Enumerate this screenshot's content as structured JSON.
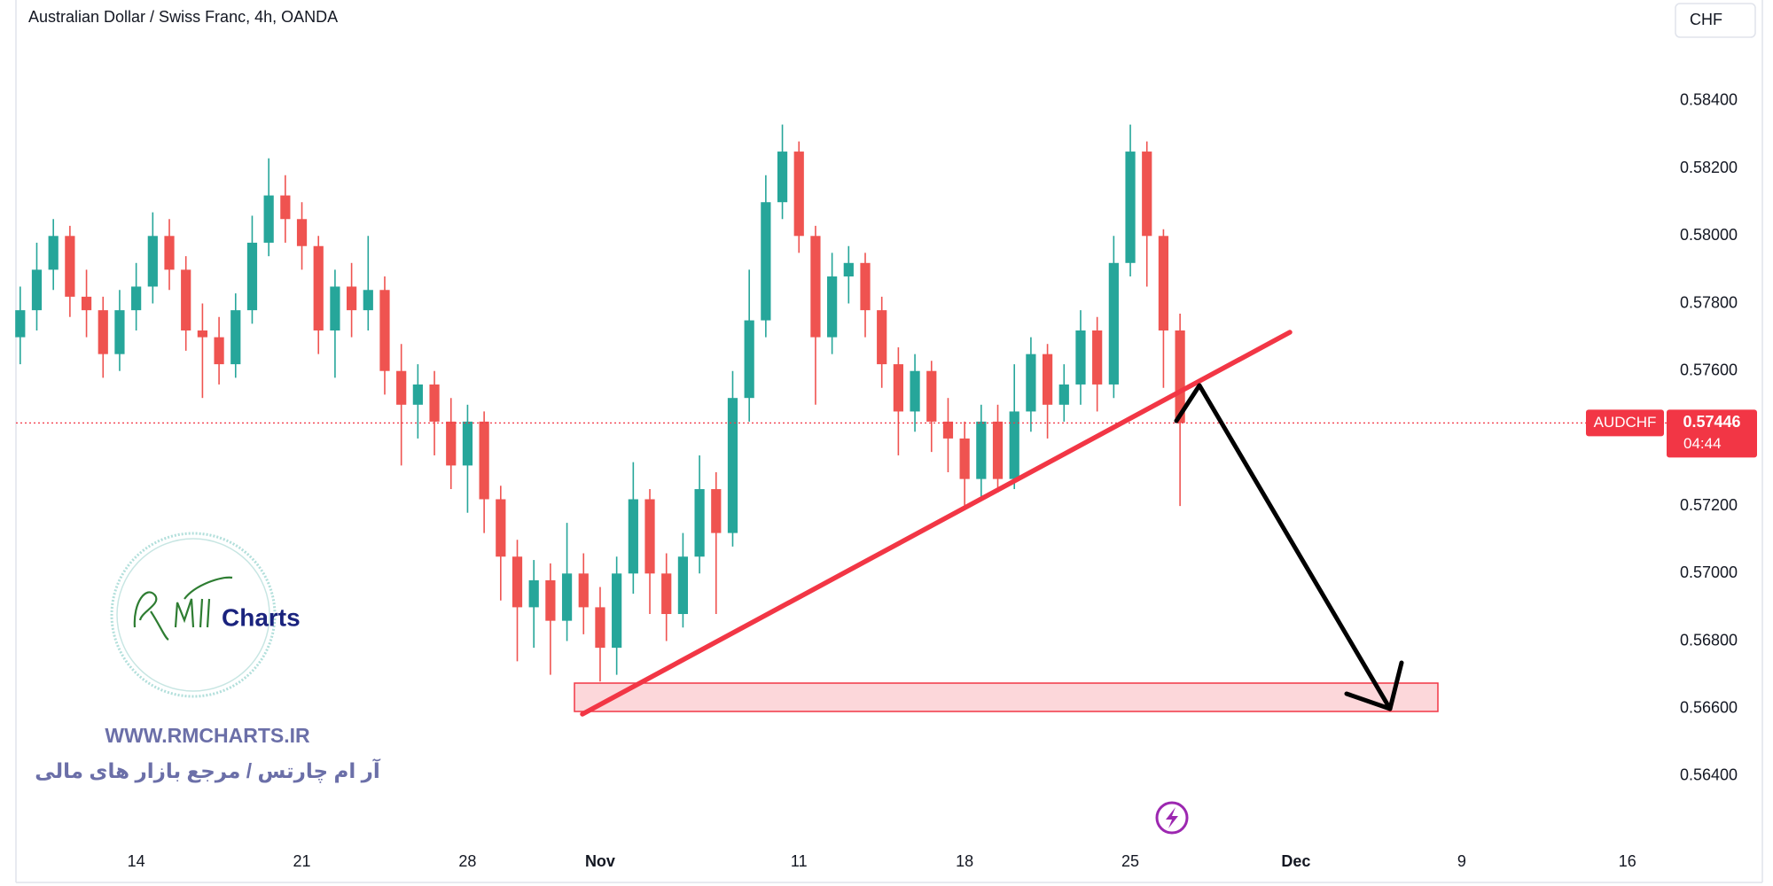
{
  "chart_data": {
    "type": "candlestick",
    "title": "Australian Dollar / Swiss Franc, 4h, OANDA",
    "currency": "CHF",
    "up_color": "#26a69a",
    "down_color": "#ef5350",
    "x": [
      -3.5,
      -3,
      -2.5,
      -2,
      -1.5,
      -1,
      -0.5,
      0,
      0.5,
      1,
      1.5,
      2,
      2.5,
      3,
      3.5,
      4,
      4.5,
      5,
      5.5,
      6,
      6.5,
      7,
      7.5,
      8,
      8.5,
      9,
      9.5,
      10,
      10.5,
      11,
      11.5,
      12,
      12.5,
      13,
      13.5,
      14,
      14.5,
      15,
      15.5,
      16,
      16.5,
      17,
      17.5,
      18,
      18.5,
      19,
      19.5,
      20,
      20.5,
      21,
      21.5,
      22,
      22.5,
      23,
      23.5,
      24,
      24.5,
      25,
      25.5,
      26,
      26.5,
      27,
      27.5,
      28,
      28.5,
      29,
      29.5,
      30,
      30.5,
      31,
      31.5
    ],
    "open": [
      0.577,
      0.5778,
      0.579,
      0.58,
      0.5782,
      0.5778,
      0.5765,
      0.5778,
      0.5785,
      0.58,
      0.579,
      0.5772,
      0.577,
      0.5762,
      0.5778,
      0.5798,
      0.5812,
      0.5805,
      0.5797,
      0.5772,
      0.5785,
      0.5778,
      0.5784,
      0.576,
      0.575,
      0.5756,
      0.5745,
      0.5732,
      0.5745,
      0.5722,
      0.5705,
      0.569,
      0.5698,
      0.5686,
      0.57,
      0.569,
      0.5678,
      0.57,
      0.5722,
      0.57,
      0.5688,
      0.5705,
      0.5725,
      0.5712,
      0.5752,
      0.5775,
      0.581,
      0.5825,
      0.58,
      0.577,
      0.5788,
      0.5792,
      0.5778,
      0.5762,
      0.5748,
      0.576,
      0.5745,
      0.574,
      0.5728,
      0.5745,
      0.5728,
      0.5748,
      0.5765,
      0.575,
      0.5756,
      0.5772,
      0.5756,
      0.5792,
      0.5825,
      0.58,
      0.5772
    ],
    "high": [
      0.5785,
      0.5798,
      0.5805,
      0.5803,
      0.579,
      0.5782,
      0.5784,
      0.5792,
      0.5807,
      0.5805,
      0.5794,
      0.578,
      0.5776,
      0.5783,
      0.5806,
      0.5823,
      0.5818,
      0.581,
      0.58,
      0.579,
      0.5792,
      0.58,
      0.5788,
      0.5768,
      0.5762,
      0.576,
      0.5752,
      0.575,
      0.5748,
      0.5726,
      0.571,
      0.5704,
      0.5703,
      0.5715,
      0.5706,
      0.5696,
      0.5705,
      0.5733,
      0.5725,
      0.5706,
      0.5712,
      0.5735,
      0.573,
      0.576,
      0.579,
      0.5818,
      0.5833,
      0.5828,
      0.5803,
      0.5795,
      0.5797,
      0.5795,
      0.5782,
      0.5767,
      0.5765,
      0.5763,
      0.5752,
      0.5745,
      0.575,
      0.575,
      0.5762,
      0.577,
      0.5768,
      0.5762,
      0.5778,
      0.5776,
      0.58,
      0.5833,
      0.5828,
      0.5802,
      0.5777
    ],
    "low": [
      0.5762,
      0.5772,
      0.5784,
      0.5776,
      0.577,
      0.5758,
      0.576,
      0.5772,
      0.578,
      0.5784,
      0.5766,
      0.5752,
      0.5756,
      0.5758,
      0.5774,
      0.5794,
      0.5798,
      0.579,
      0.5765,
      0.5758,
      0.577,
      0.5772,
      0.5753,
      0.5732,
      0.574,
      0.5735,
      0.5725,
      0.5718,
      0.5712,
      0.5692,
      0.5674,
      0.5678,
      0.567,
      0.568,
      0.5682,
      0.5668,
      0.567,
      0.5694,
      0.5688,
      0.568,
      0.5684,
      0.57,
      0.5688,
      0.5708,
      0.5745,
      0.577,
      0.5805,
      0.5795,
      0.575,
      0.5765,
      0.578,
      0.577,
      0.5755,
      0.5735,
      0.5742,
      0.5736,
      0.573,
      0.572,
      0.5722,
      0.5724,
      0.5725,
      0.5742,
      0.574,
      0.5745,
      0.575,
      0.5748,
      0.5752,
      0.5788,
      0.5785,
      0.5755,
      0.572
    ],
    "close": [
      0.5778,
      0.579,
      0.58,
      0.5782,
      0.5778,
      0.5765,
      0.5778,
      0.5785,
      0.58,
      0.579,
      0.5772,
      0.577,
      0.5762,
      0.5778,
      0.5798,
      0.5812,
      0.5805,
      0.5797,
      0.5772,
      0.5785,
      0.5778,
      0.5784,
      0.576,
      0.575,
      0.5756,
      0.5745,
      0.5732,
      0.5745,
      0.5722,
      0.5705,
      0.569,
      0.5698,
      0.5686,
      0.57,
      0.569,
      0.5678,
      0.57,
      0.5722,
      0.57,
      0.5688,
      0.5705,
      0.5725,
      0.5712,
      0.5752,
      0.5775,
      0.581,
      0.5825,
      0.58,
      0.577,
      0.5788,
      0.5792,
      0.5778,
      0.5762,
      0.5748,
      0.576,
      0.5745,
      0.574,
      0.5728,
      0.5745,
      0.5728,
      0.5748,
      0.5765,
      0.575,
      0.5756,
      0.5772,
      0.5756,
      0.5792,
      0.5825,
      0.58,
      0.5772,
      0.57446
    ],
    "xlim": [
      -4.11,
      46.05
    ],
    "ylim": [
      0.56195,
      0.58699
    ],
    "xticks": [
      {
        "value": 0,
        "label": "14"
      },
      {
        "value": 5,
        "label": "21"
      },
      {
        "value": 10,
        "label": "28"
      },
      {
        "value": 14,
        "label": "Nov"
      },
      {
        "value": 20,
        "label": "11"
      },
      {
        "value": 25,
        "label": "18"
      },
      {
        "value": 30,
        "label": "25"
      },
      {
        "value": 35,
        "label": "Dec"
      },
      {
        "value": 40,
        "label": "9"
      },
      {
        "value": 45,
        "label": "16"
      }
    ],
    "yticks": [
      {
        "value": 0.564,
        "label": "0.56400"
      },
      {
        "value": 0.566,
        "label": "0.56600"
      },
      {
        "value": 0.568,
        "label": "0.56800"
      },
      {
        "value": 0.57,
        "label": "0.57000"
      },
      {
        "value": 0.572,
        "label": "0.57200"
      },
      {
        "value": 0.574,
        "label": "0.57400"
      },
      {
        "value": 0.576,
        "label": "0.57600"
      },
      {
        "value": 0.578,
        "label": "0.57800"
      },
      {
        "value": 0.58,
        "label": "0.58000"
      },
      {
        "value": 0.582,
        "label": "0.58200"
      },
      {
        "value": 0.584,
        "label": "0.58400"
      }
    ],
    "last_price": {
      "symbol": "AUDCHF",
      "value": 0.57446,
      "countdown": "04:44",
      "color": "#f23645"
    },
    "watermark": {
      "logo": "Charts",
      "site": "WWW.RMCHARTS.IR",
      "tagline": "آر ام چارتس / مرجع بازار های مالی"
    }
  }
}
